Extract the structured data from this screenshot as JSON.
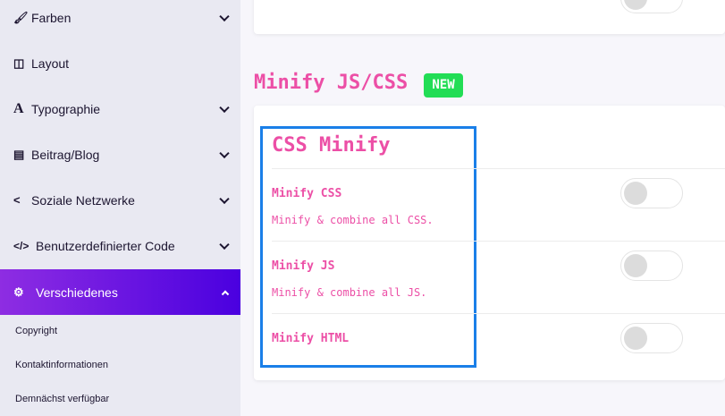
{
  "sidebar": {
    "items": [
      {
        "label": "Farben",
        "icon": "brush-icon"
      },
      {
        "label": "Layout",
        "icon": "columns-icon"
      },
      {
        "label": "Typographie",
        "icon": "font-icon"
      },
      {
        "label": "Beitrag/Blog",
        "icon": "newspaper-icon"
      },
      {
        "label": "Soziale Netzwerke",
        "icon": "share-icon"
      },
      {
        "label": "Benutzerdefinierter Code",
        "icon": "code-icon"
      },
      {
        "label": "Verschiedenes",
        "icon": "cogs-icon"
      }
    ],
    "subitems": [
      "Copyright",
      "Kontaktinformationen",
      "Demnächst verfügbar"
    ]
  },
  "main": {
    "section_title": "Minify JS/CSS",
    "badge": "NEW",
    "card_title": "CSS Minify",
    "options": [
      {
        "label": "Minify CSS",
        "description": "Minify & combine all CSS.",
        "enabled": false
      },
      {
        "label": "Minify JS",
        "description": "Minify & combine all JS.",
        "enabled": false
      },
      {
        "label": "Minify HTML",
        "enabled": false
      }
    ]
  },
  "colors": {
    "accent": "#ec4fa6",
    "badge": "#22dd55",
    "active_nav": "#6a14e0",
    "highlight": "#1a7fe8"
  }
}
